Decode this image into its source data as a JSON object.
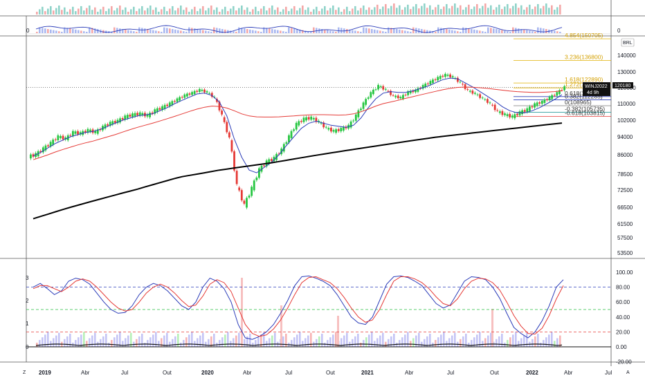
{
  "axis_buttons": {
    "left": "Z",
    "right": "A"
  },
  "currency_badge": "BRL",
  "symbol_tag": {
    "symbol": "WINJ2022",
    "countdown": "4d 9h",
    "price": "120180"
  },
  "colors": {
    "up": "#26c641",
    "down": "#e53935",
    "ma_fast": "#2a3bb8",
    "ma_mid": "#e53935",
    "ma_slow": "#000000",
    "fib": "#e0b000",
    "stoch_k": "#2a3bb8",
    "stoch_d": "#e53935"
  },
  "chart_data": [
    {
      "type": "line",
      "panel": "volume-strip",
      "ylabel_left": "0",
      "ylabel_right": "0"
    },
    {
      "type": "candlestick",
      "panel": "price",
      "y_ticks": [
        "140000",
        "130000",
        "120000",
        "110000",
        "102000",
        "94000",
        "86000",
        "78500",
        "72500",
        "66500",
        "61500",
        "57500",
        "53500"
      ],
      "y_tick_values": [
        140000,
        130000,
        120000,
        110000,
        102000,
        94000,
        86000,
        78500,
        72500,
        66500,
        61500,
        57500,
        53500
      ],
      "last_price": "120180",
      "fib_levels": [
        {
          "label": "4.854(150705)",
          "value": 150705
        },
        {
          "label": "3.236(136800)",
          "value": 136800
        },
        {
          "label": "1.618(122890)",
          "value": 122890
        },
        {
          "label": "1.272(119915)",
          "value": 119915
        },
        {
          "label": "0.618(114316)",
          "value": 114316
        },
        {
          "label": "0.382(112285)",
          "value": 112285
        },
        {
          "label": "0(108965)",
          "value": 108965
        },
        {
          "label": "-0.382(105735)",
          "value": 105735
        },
        {
          "label": "-0.618(103815)",
          "value": 103815
        }
      ],
      "x_ticks": [
        "2019",
        "Abr",
        "Jul",
        "Out",
        "2020",
        "Abr",
        "Jul",
        "Out",
        "2021",
        "Abr",
        "Jul",
        "Out",
        "2022",
        "Abr",
        "Jul"
      ],
      "series": [
        {
          "name": "close_weekly_approx",
          "values": [
            86000,
            88500,
            91000,
            94000,
            93000,
            96000,
            95500,
            97000,
            96000,
            98500,
            100500,
            101500,
            103500,
            104500,
            105000,
            104000,
            106500,
            108000,
            110000,
            112500,
            115000,
            116500,
            118500,
            117000,
            113500,
            104000,
            93000,
            74000,
            67000,
            73000,
            80000,
            83000,
            84500,
            88000,
            94000,
            100000,
            102500,
            103000,
            101000,
            98000,
            96500,
            97500,
            99000,
            104000,
            110000,
            116500,
            121000,
            118500,
            114500,
            113500,
            117000,
            118000,
            121000,
            123500,
            126000,
            128000,
            126500,
            123000,
            118000,
            116000,
            113000,
            110000,
            106000,
            104500,
            103500,
            105500,
            107000,
            109500,
            111000,
            113500,
            116500,
            120180
          ]
        },
        {
          "name": "ma_fast_blue",
          "values": [
            85500,
            87000,
            89000,
            91000,
            92500,
            94000,
            95000,
            96000,
            96500,
            97500,
            99000,
            100500,
            102000,
            103000,
            104000,
            104500,
            105000,
            106500,
            108000,
            110000,
            112000,
            114000,
            116000,
            116500,
            115000,
            111000,
            104000,
            93000,
            85000,
            80000,
            79000,
            81000,
            83000,
            86000,
            90000,
            94000,
            98000,
            100500,
            101500,
            100500,
            99500,
            99000,
            98500,
            99500,
            103000,
            108000,
            113000,
            116500,
            117500,
            117000,
            117000,
            118000,
            119500,
            121000,
            123000,
            125000,
            126000,
            125500,
            123000,
            120500,
            117500,
            114500,
            111500,
            108500,
            106500,
            105500,
            105500,
            106500,
            108000,
            110000,
            112500,
            115500
          ]
        },
        {
          "name": "ma_mid_red",
          "values": [
            84000,
            85000,
            86000,
            87200,
            88300,
            89300,
            90300,
            91200,
            92000,
            93000,
            94000,
            95000,
            96200,
            97400,
            98500,
            99500,
            100500,
            101600,
            102700,
            103800,
            105000,
            106200,
            107300,
            108200,
            108800,
            108600,
            107800,
            106500,
            105000,
            104000,
            103600,
            103500,
            103500,
            103600,
            103800,
            104000,
            104300,
            104500,
            104600,
            104600,
            104500,
            104400,
            104500,
            105000,
            106000,
            107300,
            108800,
            110000,
            111000,
            112000,
            113200,
            114300,
            115400,
            116500,
            117600,
            118700,
            119600,
            120200,
            120400,
            120300,
            120000,
            119600,
            119000,
            118400,
            117900,
            117500,
            117200,
            117000,
            117000,
            117200,
            117500,
            118000
          ]
        },
        {
          "name": "ma_slow_black",
          "values": [
            63000,
            63700,
            64400,
            65100,
            65800,
            66500,
            67200,
            67900,
            68600,
            69300,
            70000,
            70700,
            71400,
            72100,
            72800,
            73600,
            74400,
            75200,
            76000,
            76800,
            77500,
            78000,
            78500,
            79000,
            79500,
            80000,
            80400,
            80800,
            81200,
            81600,
            82000,
            82400,
            82800,
            83300,
            83800,
            84300,
            84800,
            85300,
            85800,
            86300,
            86800,
            87300,
            87800,
            88300,
            88800,
            89300,
            89800,
            90300,
            90800,
            91300,
            91800,
            92300,
            92800,
            93300,
            93800,
            94200,
            94600,
            95000,
            95400,
            95800,
            96200,
            96600,
            97000,
            97400,
            97800,
            98200,
            98600,
            99000,
            99400,
            99800,
            100200,
            100600
          ]
        }
      ]
    },
    {
      "type": "line",
      "panel": "stochastic",
      "y_ticks_right": [
        "100.00",
        "80.00",
        "60.00",
        "40.00",
        "20.00",
        "0.00",
        "-20.00"
      ],
      "y_tick_values_right": [
        100,
        80,
        60,
        40,
        20,
        0,
        -20
      ],
      "y_ticks_left": [
        "3",
        "2",
        "1",
        "0"
      ],
      "levels": [
        80,
        50,
        20,
        0
      ],
      "series": [
        {
          "name": "%K",
          "values": [
            80,
            85,
            78,
            70,
            75,
            88,
            92,
            90,
            84,
            72,
            60,
            50,
            45,
            46,
            55,
            70,
            80,
            85,
            82,
            75,
            65,
            55,
            50,
            60,
            80,
            92,
            88,
            78,
            60,
            30,
            12,
            10,
            14,
            20,
            30,
            45,
            62,
            82,
            94,
            95,
            92,
            88,
            82,
            70,
            55,
            40,
            32,
            30,
            40,
            62,
            84,
            94,
            95,
            93,
            88,
            82,
            70,
            58,
            52,
            56,
            72,
            88,
            94,
            93,
            90,
            80,
            65,
            45,
            26,
            18,
            12,
            20,
            35,
            55,
            80,
            90
          ]
        },
        {
          "name": "%D",
          "values": [
            78,
            82,
            82,
            78,
            74,
            80,
            88,
            91,
            88,
            80,
            70,
            60,
            52,
            48,
            50,
            60,
            72,
            80,
            84,
            80,
            72,
            62,
            54,
            56,
            68,
            84,
            90,
            86,
            74,
            52,
            30,
            18,
            14,
            16,
            24,
            36,
            52,
            70,
            86,
            93,
            94,
            90,
            86,
            78,
            66,
            52,
            40,
            33,
            36,
            50,
            70,
            88,
            94,
            94,
            91,
            86,
            78,
            67,
            58,
            55,
            64,
            78,
            88,
            92,
            91,
            86,
            76,
            60,
            42,
            28,
            18,
            17,
            25,
            42,
            64,
            82
          ]
        }
      ]
    }
  ]
}
